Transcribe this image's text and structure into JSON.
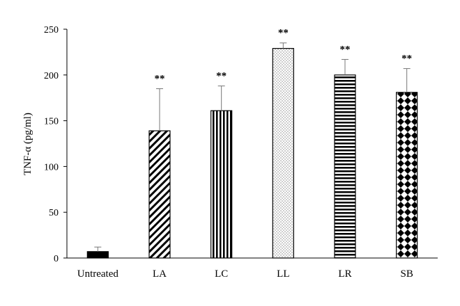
{
  "chart_data": {
    "type": "bar",
    "title": "",
    "xlabel": "",
    "ylabel": "TNF-α (pg/ml)",
    "ylim": [
      0,
      250
    ],
    "yticks": [
      0,
      50,
      100,
      150,
      200,
      250
    ],
    "grid": false,
    "legend": "none",
    "categories": [
      "Untreated",
      "LA",
      "LC",
      "LL",
      "LR",
      "SB"
    ],
    "values": [
      7,
      139,
      161,
      229,
      200,
      181
    ],
    "error_upper": [
      5,
      46,
      27,
      6,
      17,
      26
    ],
    "significance": [
      "",
      "**",
      "**",
      "**",
      "**",
      "**"
    ],
    "patterns": [
      "solid",
      "diagonal-stripes",
      "vertical-stripes",
      "dots",
      "horizontal-stripes",
      "diamond-checker"
    ],
    "colors": {
      "bar": "#000000",
      "background": "#ffffff",
      "axis": "#000000"
    }
  }
}
